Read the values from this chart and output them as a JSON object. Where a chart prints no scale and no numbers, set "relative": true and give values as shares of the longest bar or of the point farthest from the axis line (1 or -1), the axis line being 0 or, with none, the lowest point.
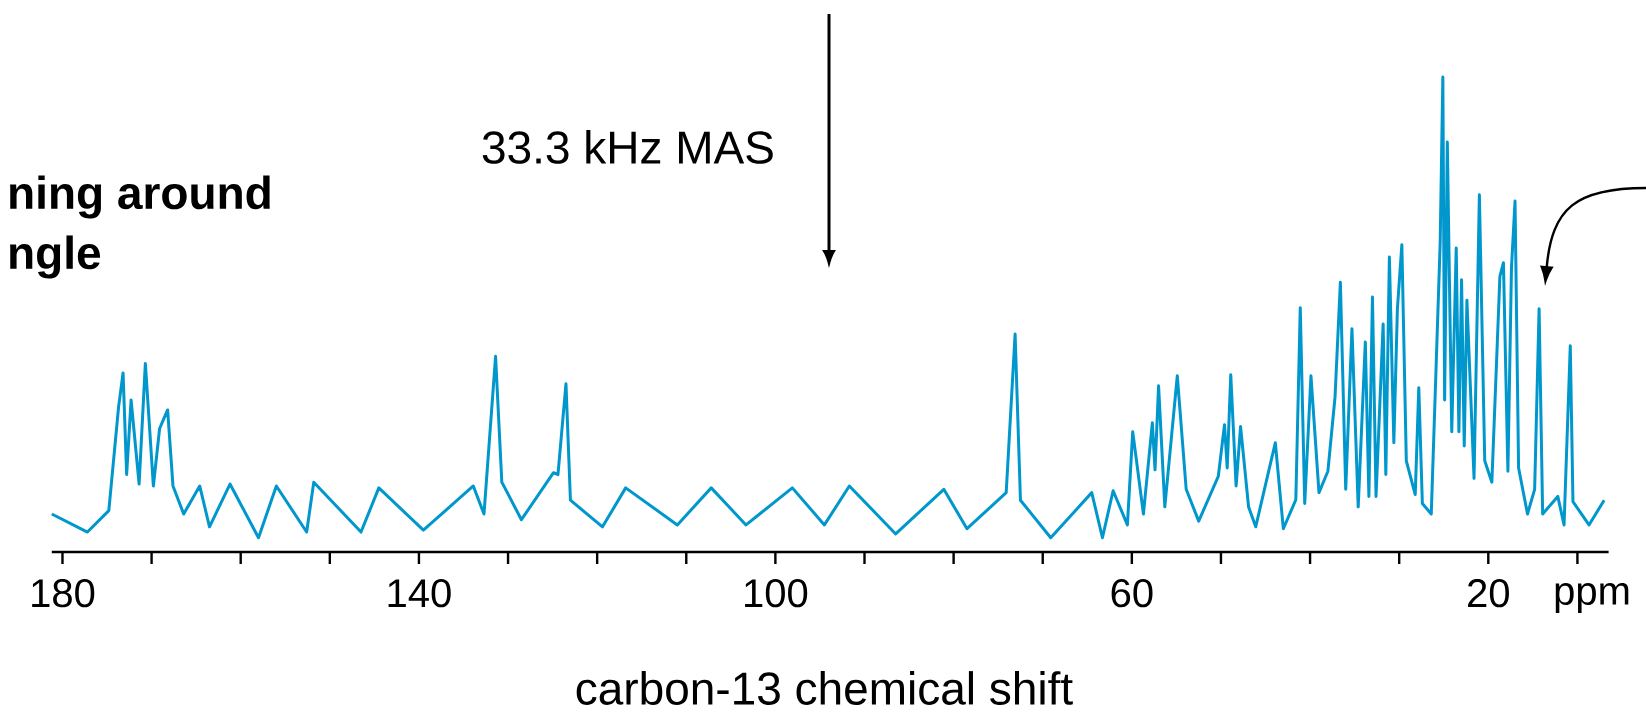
{
  "chart_data": {
    "type": "line",
    "relative": true,
    "color": "#0097cc",
    "xlabel": "carbon-13 chemical shift",
    "xlim": [
      181.2,
      6.5
    ],
    "xticks": [
      180,
      {
        "value": 170,
        "label": null
      },
      {
        "value": 160,
        "label": null
      },
      {
        "value": 150,
        "label": null
      },
      140,
      {
        "value": 130,
        "label": null
      },
      {
        "value": 120,
        "label": null
      },
      {
        "value": 110,
        "label": null
      },
      100,
      {
        "value": 90,
        "label": null
      },
      {
        "value": 80,
        "label": null
      },
      {
        "value": 70,
        "label": null
      },
      60,
      {
        "value": 50,
        "label": null
      },
      {
        "value": 40,
        "label": null
      },
      {
        "value": 30,
        "label": null
      },
      20,
      {
        "value": 10,
        "label": null
      }
    ],
    "annotations": [
      "33.3 kHz MAS",
      "ning around",
      "ngle",
      "ppm"
    ],
    "x": [
      181.2,
      177.2,
      174.8,
      173.7,
      173.2,
      172.8,
      172.3,
      171.4,
      170.7,
      169.8,
      169.1,
      168.2,
      167.6,
      166.4,
      164.6,
      163.5,
      161.2,
      158.0,
      156.0,
      152.6,
      151.8,
      146.5,
      144.5,
      139.5,
      133.9,
      132.7,
      131.4,
      130.7,
      128.5,
      124.9,
      124.4,
      123.5,
      123.0,
      119.4,
      116.8,
      111.0,
      107.2,
      103.3,
      98.1,
      94.5,
      91.7,
      86.5,
      81.1,
      78.5,
      74.1,
      73.1,
      72.5,
      69.1,
      64.5,
      63.3,
      62.1,
      60.5,
      59.9,
      58.7,
      57.7,
      57.4,
      57.0,
      56.3,
      54.9,
      53.9,
      52.5,
      50.3,
      49.6,
      49.3,
      48.9,
      48.3,
      47.8,
      46.9,
      46.1,
      43.9,
      43.0,
      41.6,
      41.1,
      40.6,
      39.9,
      39.0,
      38.0,
      37.2,
      36.6,
      36.0,
      35.3,
      34.6,
      33.8,
      33.4,
      33.0,
      32.6,
      31.8,
      31.5,
      31.1,
      30.6,
      30.2,
      29.7,
      29.2,
      28.2,
      27.8,
      27.4,
      26.4,
      25.4,
      25.1,
      24.9,
      24.6,
      24.1,
      23.6,
      23.3,
      23.0,
      22.7,
      22.4,
      21.6,
      21.0,
      20.4,
      19.6,
      18.7,
      18.3,
      17.8,
      17.4,
      17.0,
      16.6,
      15.6,
      14.8,
      14.3,
      13.9,
      12.2,
      11.5,
      10.8,
      10.5,
      8.7,
      7.0
    ],
    "values": [
      0.08,
      0.042,
      0.087,
      0.306,
      0.377,
      0.163,
      0.32,
      0.143,
      0.397,
      0.139,
      0.26,
      0.299,
      0.139,
      0.08,
      0.139,
      0.053,
      0.143,
      0.03,
      0.139,
      0.042,
      0.147,
      0.042,
      0.135,
      0.046,
      0.139,
      0.08,
      0.412,
      0.147,
      0.068,
      0.167,
      0.163,
      0.354,
      0.109,
      0.053,
      0.135,
      0.057,
      0.135,
      0.057,
      0.135,
      0.057,
      0.139,
      0.038,
      0.132,
      0.049,
      0.125,
      0.459,
      0.109,
      0.03,
      0.125,
      0.03,
      0.129,
      0.057,
      0.253,
      0.08,
      0.272,
      0.173,
      0.35,
      0.095,
      0.371,
      0.132,
      0.065,
      0.159,
      0.268,
      0.177,
      0.373,
      0.139,
      0.264,
      0.095,
      0.053,
      0.23,
      0.049,
      0.11,
      0.514,
      0.102,
      0.371,
      0.125,
      0.17,
      0.326,
      0.568,
      0.132,
      0.47,
      0.095,
      0.442,
      0.117,
      0.537,
      0.117,
      0.48,
      0.163,
      0.621,
      0.23,
      0.512,
      0.647,
      0.192,
      0.121,
      0.346,
      0.102,
      0.08,
      0.651,
      1.0,
      0.32,
      0.863,
      0.253,
      0.64,
      0.253,
      0.573,
      0.223,
      0.53,
      0.155,
      0.752,
      0.192,
      0.147,
      0.58,
      0.609,
      0.17,
      0.598,
      0.739,
      0.177,
      0.08,
      0.132,
      0.512,
      0.08,
      0.117,
      0.057,
      0.434,
      0.106,
      0.057,
      0.109
    ]
  }
}
